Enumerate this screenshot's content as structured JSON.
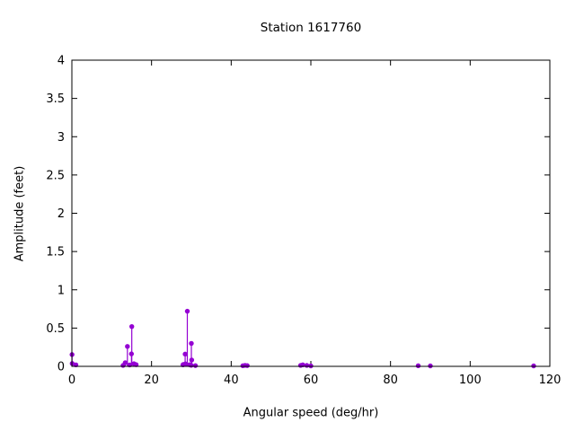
{
  "chart_data": {
    "type": "scatter",
    "plot_style": "impulses+points",
    "title": "Station 1617760",
    "xlabel": "Angular speed (deg/hr)",
    "ylabel": "Amplitude (feet)",
    "xlim": [
      0,
      120
    ],
    "ylim": [
      0,
      4
    ],
    "xticks": [
      0,
      20,
      40,
      60,
      80,
      100,
      120
    ],
    "yticks": [
      0,
      0.5,
      1,
      1.5,
      2,
      2.5,
      3,
      3.5,
      4
    ],
    "grid": false,
    "legend": "none",
    "point_color": "#9400d3",
    "border_color": "#000000",
    "points": [
      {
        "x": 0.041,
        "y": 0.154
      },
      {
        "x": 0.082,
        "y": 0.037
      },
      {
        "x": 1.016,
        "y": 0.02
      },
      {
        "x": 12.854,
        "y": 0.012
      },
      {
        "x": 13.399,
        "y": 0.048
      },
      {
        "x": 13.943,
        "y": 0.26
      },
      {
        "x": 14.497,
        "y": 0.018
      },
      {
        "x": 14.959,
        "y": 0.163
      },
      {
        "x": 15.041,
        "y": 0.52
      },
      {
        "x": 15.585,
        "y": 0.035
      },
      {
        "x": 16.139,
        "y": 0.022
      },
      {
        "x": 27.895,
        "y": 0.02
      },
      {
        "x": 27.968,
        "y": 0.024
      },
      {
        "x": 28.439,
        "y": 0.16
      },
      {
        "x": 28.512,
        "y": 0.033
      },
      {
        "x": 28.984,
        "y": 0.72
      },
      {
        "x": 29.528,
        "y": 0.021
      },
      {
        "x": 29.959,
        "y": 0.014
      },
      {
        "x": 30.0,
        "y": 0.3
      },
      {
        "x": 30.082,
        "y": 0.083
      },
      {
        "x": 31.016,
        "y": 0.01
      },
      {
        "x": 42.927,
        "y": 0.008
      },
      {
        "x": 43.476,
        "y": 0.013
      },
      {
        "x": 44.025,
        "y": 0.01
      },
      {
        "x": 57.424,
        "y": 0.012
      },
      {
        "x": 57.968,
        "y": 0.02
      },
      {
        "x": 58.984,
        "y": 0.012
      },
      {
        "x": 60.0,
        "y": 0.006
      },
      {
        "x": 86.952,
        "y": 0.008
      },
      {
        "x": 90.0,
        "y": 0.006
      },
      {
        "x": 115.936,
        "y": 0.006
      }
    ]
  }
}
